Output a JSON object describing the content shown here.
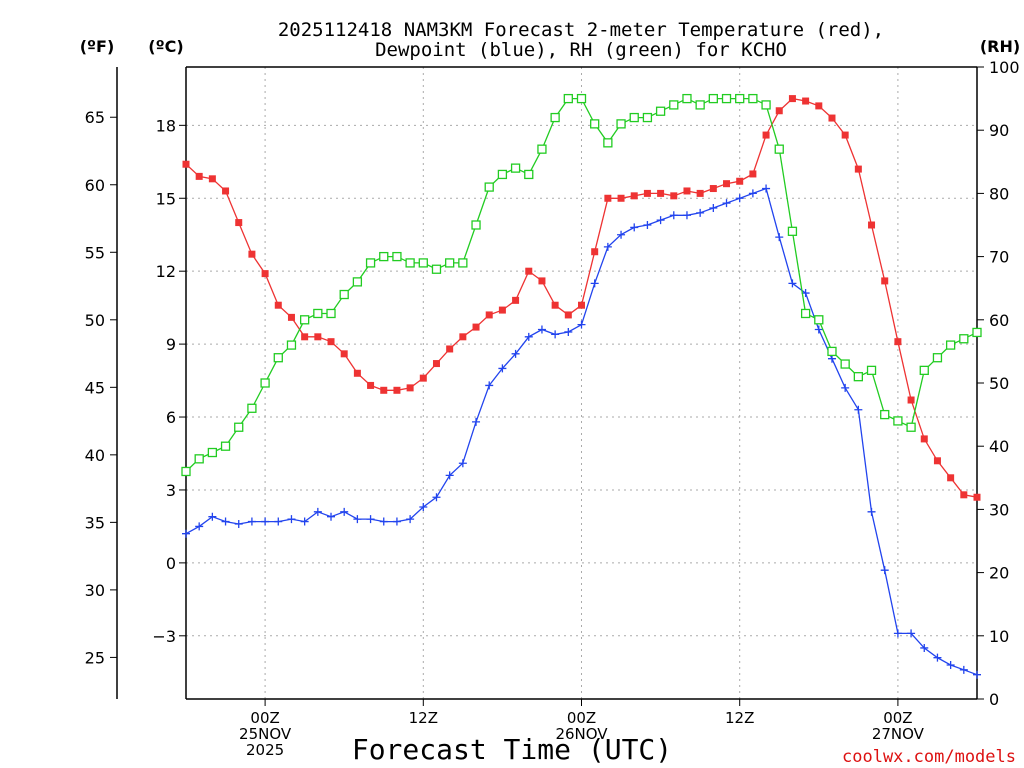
{
  "chart_data": {
    "type": "line",
    "title_line1": "2025112418 NAM3KM Forecast 2-meter Temperature (red),",
    "title_line2": "Dewpoint (blue), RH (green) for KCHO",
    "xlabel": "Forecast Time (UTC)",
    "credit": "coolwx.com/models",
    "units": {
      "left_outer": "(ºF)",
      "left_inner": "(ºC)",
      "right": "(RH)"
    },
    "x_range_hours": [
      -6,
      54
    ],
    "x_ticks": [
      {
        "hour": 0,
        "lines": [
          "00Z",
          "25NOV",
          "2025"
        ]
      },
      {
        "hour": 12,
        "lines": [
          "12Z"
        ]
      },
      {
        "hour": 24,
        "lines": [
          "00Z",
          "26NOV"
        ]
      },
      {
        "hour": 36,
        "lines": [
          "12Z"
        ]
      },
      {
        "hour": 48,
        "lines": [
          "00Z",
          "27NOV"
        ]
      }
    ],
    "celsius_range": [
      -5.6,
      20.4
    ],
    "celsius_ticks": [
      "-3",
      "0",
      "3",
      "6",
      "9",
      "12",
      "15",
      "18"
    ],
    "fahrenheit_ticks": [
      "25",
      "30",
      "35",
      "40",
      "45",
      "50",
      "55",
      "60",
      "65"
    ],
    "rh_range": [
      0,
      100
    ],
    "rh_ticks": [
      "0",
      "10",
      "20",
      "30",
      "40",
      "50",
      "60",
      "70",
      "80",
      "90",
      "100"
    ],
    "grid": true,
    "series": [
      {
        "name": "Temperature (°C)",
        "color": "#ee3333",
        "marker": "filled-square",
        "x": [
          -6,
          -5,
          -4,
          -3,
          -2,
          -1,
          0,
          1,
          2,
          3,
          4,
          5,
          6,
          7,
          8,
          9,
          10,
          11,
          12,
          13,
          14,
          15,
          16,
          17,
          18,
          19,
          20,
          21,
          22,
          23,
          24,
          25,
          26,
          27,
          28,
          29,
          30,
          31,
          32,
          33,
          34,
          35,
          36,
          37,
          38,
          39,
          40,
          41,
          42,
          43,
          44,
          45,
          46,
          47,
          48,
          49,
          50,
          51,
          52,
          53,
          54
        ],
        "values": [
          16.4,
          15.9,
          15.8,
          15.3,
          14.0,
          12.7,
          11.9,
          10.6,
          10.1,
          9.3,
          9.3,
          9.1,
          8.6,
          7.8,
          7.3,
          7.1,
          7.1,
          7.2,
          7.6,
          8.2,
          8.8,
          9.3,
          9.7,
          10.2,
          10.4,
          10.8,
          12.0,
          11.6,
          10.6,
          10.2,
          10.6,
          12.8,
          15.0,
          15.0,
          15.1,
          15.2,
          15.2,
          15.1,
          15.3,
          15.2,
          15.4,
          15.6,
          15.7,
          16.0,
          17.6,
          18.6,
          19.1,
          19.0,
          18.8,
          18.3,
          17.6,
          16.2,
          13.9,
          11.6,
          9.1,
          6.7,
          5.1,
          4.2,
          3.5,
          2.8,
          2.7
        ]
      },
      {
        "name": "Dewpoint (°C)",
        "color": "#2244ee",
        "marker": "plus",
        "x": [
          -6,
          -5,
          -4,
          -3,
          -2,
          -1,
          0,
          1,
          2,
          3,
          4,
          5,
          6,
          7,
          8,
          9,
          10,
          11,
          12,
          13,
          14,
          15,
          16,
          17,
          18,
          19,
          20,
          21,
          22,
          23,
          24,
          25,
          26,
          27,
          28,
          29,
          30,
          31,
          32,
          33,
          34,
          35,
          36,
          37,
          38,
          39,
          40,
          41,
          42,
          43,
          44,
          45,
          46,
          47,
          48,
          49,
          50,
          51,
          52,
          53,
          54
        ],
        "values": [
          1.2,
          1.5,
          1.9,
          1.7,
          1.6,
          1.7,
          1.7,
          1.7,
          1.8,
          1.7,
          2.1,
          1.9,
          2.1,
          1.8,
          1.8,
          1.7,
          1.7,
          1.8,
          2.3,
          2.7,
          3.6,
          4.1,
          5.8,
          7.3,
          8.0,
          8.6,
          9.3,
          9.6,
          9.4,
          9.5,
          9.8,
          11.5,
          13.0,
          13.5,
          13.8,
          13.9,
          14.1,
          14.3,
          14.3,
          14.4,
          14.6,
          14.8,
          15.0,
          15.2,
          15.4,
          13.4,
          11.5,
          11.1,
          9.6,
          8.4,
          7.2,
          6.3,
          2.1,
          -0.3,
          -2.9,
          -2.9,
          -3.5,
          -3.9,
          -4.2,
          -4.4,
          -4.6
        ]
      },
      {
        "name": "Relative Humidity (%)",
        "color": "#22cc22",
        "marker": "open-square",
        "x": [
          -6,
          -5,
          -4,
          -3,
          -2,
          -1,
          0,
          1,
          2,
          3,
          4,
          5,
          6,
          7,
          8,
          9,
          10,
          11,
          12,
          13,
          14,
          15,
          16,
          17,
          18,
          19,
          20,
          21,
          22,
          23,
          24,
          25,
          26,
          27,
          28,
          29,
          30,
          31,
          32,
          33,
          34,
          35,
          36,
          37,
          38,
          39,
          40,
          41,
          42,
          43,
          44,
          45,
          46,
          47,
          48,
          49,
          50,
          51,
          52,
          53,
          54
        ],
        "values": [
          36,
          38,
          39,
          40,
          43,
          46,
          50,
          54,
          56,
          60,
          61,
          61,
          64,
          66,
          69,
          70,
          70,
          69,
          69,
          68,
          69,
          69,
          75,
          81,
          83,
          84,
          83,
          87,
          92,
          95,
          95,
          91,
          88,
          91,
          92,
          92,
          93,
          94,
          95,
          94,
          95,
          95,
          95,
          95,
          94,
          87,
          74,
          61,
          60,
          55,
          53,
          51,
          52,
          45,
          44,
          43,
          52,
          54,
          56,
          57,
          58
        ]
      }
    ]
  }
}
